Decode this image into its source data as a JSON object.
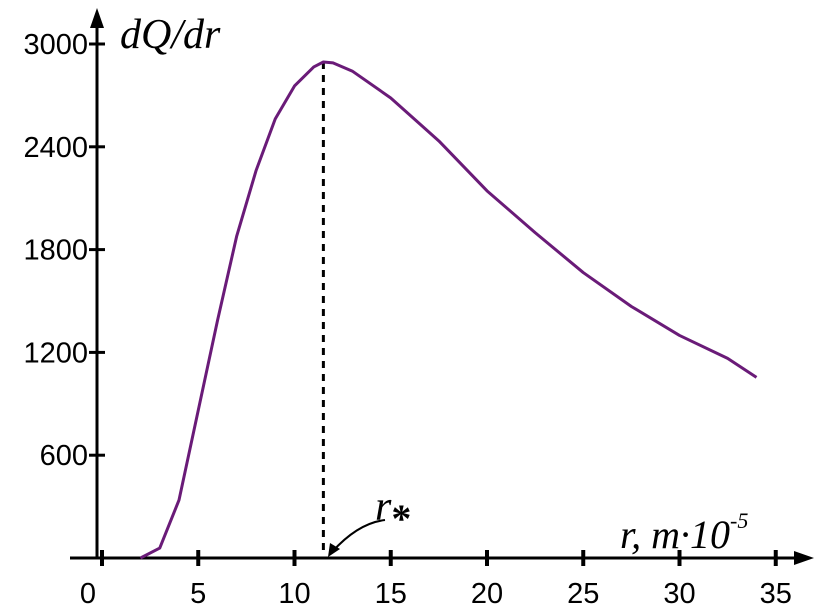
{
  "chart_data": {
    "type": "line",
    "y_label": "dQ/dr",
    "x_label": "r, m·10",
    "x_label_exponent": "-5",
    "annotation": "r",
    "annotation_subscript": "*",
    "annotation_x": 11.5,
    "x": [
      2,
      3,
      4,
      5,
      6,
      7,
      8,
      9,
      10,
      11,
      11.5,
      12,
      13,
      15,
      17.5,
      20,
      22.5,
      25,
      27.5,
      30,
      32.5,
      34
    ],
    "series": [
      {
        "name": "dQ/dr",
        "color": "#6a1b78",
        "values": [
          0,
          58,
          338,
          862,
          1386,
          1880,
          2260,
          2563,
          2755,
          2866,
          2895,
          2890,
          2842,
          2685,
          2434,
          2143,
          1899,
          1666,
          1468,
          1299,
          1165,
          1054
        ]
      }
    ],
    "xlim": [
      0,
      37
    ],
    "ylim": [
      0,
      3150
    ],
    "xticks": [
      0,
      5,
      10,
      15,
      20,
      25,
      30,
      35
    ],
    "yticks": [
      600,
      1200,
      1800,
      2400,
      3000
    ]
  }
}
